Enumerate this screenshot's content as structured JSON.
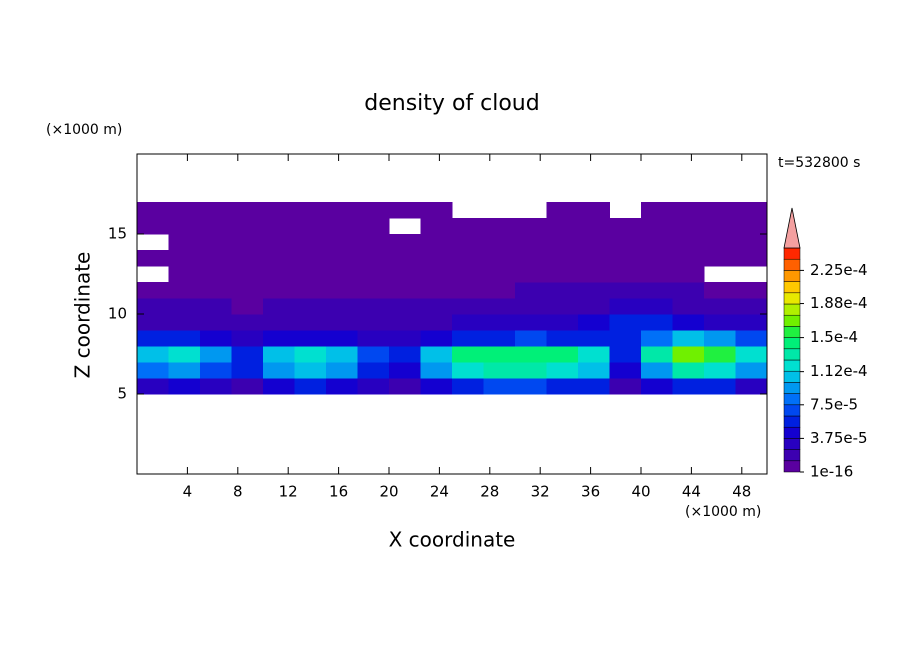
{
  "chart_data": {
    "type": "contour",
    "title": "density of cloud",
    "xlabel": "X coordinate",
    "ylabel": "Z coordinate",
    "x_unit": "(×1000 m)",
    "y_unit": "(×1000 m)",
    "time_label": "t=532800 s",
    "xlim": [
      0,
      50
    ],
    "ylim": [
      0,
      20
    ],
    "xticks": [
      4,
      8,
      12,
      16,
      20,
      24,
      28,
      32,
      36,
      40,
      44,
      48
    ],
    "yticks": [
      5,
      10,
      15
    ],
    "x_edges": [
      0,
      2.5,
      5,
      7.5,
      10,
      12.5,
      15,
      17.5,
      20,
      22.5,
      25,
      27.5,
      30,
      32.5,
      35,
      37.5,
      40,
      42.5,
      45,
      47.5,
      50
    ],
    "z_edges": [
      5,
      6,
      7,
      8,
      9,
      10,
      11,
      12,
      13,
      14,
      15,
      16,
      17
    ],
    "values": [
      [
        3e-05,
        4e-05,
        3e-05,
        2e-05,
        4e-05,
        5e-05,
        4e-05,
        3e-05,
        2e-05,
        4e-05,
        6e-05,
        7e-05,
        7e-05,
        6e-05,
        5e-05,
        2e-05,
        4e-05,
        6e-05,
        5e-05,
        3e-05
      ],
      [
        8e-05,
        9e-05,
        7e-05,
        5e-05,
        9e-05,
        0.0001,
        9e-05,
        6e-05,
        4e-05,
        9e-05,
        0.00012,
        0.00013,
        0.00013,
        0.00012,
        0.0001,
        4e-05,
        9e-05,
        0.00013,
        0.00012,
        9e-05
      ],
      [
        0.00011,
        0.00012,
        9e-05,
        6e-05,
        0.00011,
        0.00012,
        0.00011,
        7e-05,
        5e-05,
        0.00011,
        0.00014,
        0.00015,
        0.00015,
        0.000145,
        0.00012,
        5e-05,
        0.00013,
        0.00017,
        0.00016,
        0.00012
      ],
      [
        6e-05,
        5e-05,
        4e-05,
        3e-05,
        4e-05,
        4e-05,
        4e-05,
        3e-05,
        3e-05,
        4e-05,
        5e-05,
        6e-05,
        7e-05,
        6e-05,
        5e-05,
        6e-05,
        8e-05,
        0.0001,
        9e-05,
        7e-05
      ],
      [
        2e-05,
        2e-05,
        2e-05,
        2e-05,
        2e-05,
        2e-05,
        2e-05,
        2e-05,
        2e-05,
        2e-05,
        3e-05,
        3e-05,
        3e-05,
        3e-05,
        4e-05,
        5e-05,
        5e-05,
        4e-05,
        3e-05,
        3e-05
      ],
      [
        1.5e-05,
        1.4e-05,
        1.3e-05,
        1.2e-05,
        1.3e-05,
        1.4e-05,
        1.5e-05,
        1.5e-05,
        1.4e-05,
        1.5e-05,
        1.6e-05,
        1.8e-05,
        1.8e-05,
        1.7e-05,
        2e-05,
        2.5e-05,
        2.6e-05,
        2.2e-05,
        1.8e-05,
        1.6e-05
      ],
      [
        8e-06,
        7e-06,
        8e-06,
        6e-06,
        8e-06,
        9e-06,
        1e-05,
        9e-06,
        8e-06,
        1e-05,
        1.1e-05,
        1.2e-05,
        1.3e-05,
        1.3e-05,
        1.3e-05,
        1.4e-05,
        1.4e-05,
        1.3e-05,
        1.2e-05,
        1.1e-05
      ],
      [
        null,
        5e-06,
        5e-06,
        4e-06,
        5e-06,
        6e-06,
        6e-06,
        6e-06,
        5e-06,
        6e-06,
        7e-06,
        8e-06,
        8e-06,
        8e-06,
        9e-06,
        9e-06,
        9e-06,
        9e-06,
        null,
        null
      ],
      [
        3e-06,
        3e-06,
        3e-06,
        3e-06,
        4e-06,
        4e-06,
        4e-06,
        4e-06,
        4e-06,
        4e-06,
        5e-06,
        5e-06,
        5e-06,
        5e-06,
        5e-06,
        5e-06,
        6e-06,
        6e-06,
        6e-06,
        5e-06
      ],
      [
        null,
        2e-06,
        2e-06,
        2e-06,
        2e-06,
        2e-06,
        3e-06,
        3e-06,
        3e-06,
        3e-06,
        3e-06,
        3e-06,
        3e-06,
        3e-06,
        3e-06,
        3e-06,
        3e-06,
        3e-06,
        3e-06,
        3e-06
      ],
      [
        1e-06,
        1e-06,
        1e-06,
        1e-06,
        1e-06,
        1e-06,
        1e-06,
        1e-06,
        null,
        1e-06,
        1e-06,
        1e-06,
        1e-06,
        1e-06,
        1e-06,
        1e-06,
        1e-06,
        1e-06,
        1e-06,
        1e-06
      ],
      [
        5e-07,
        5e-07,
        5e-07,
        5e-07,
        5e-07,
        5e-07,
        5e-07,
        5e-07,
        5e-07,
        5e-07,
        null,
        null,
        null,
        5e-07,
        5e-07,
        null,
        5e-07,
        5e-07,
        5e-07,
        5e-07
      ]
    ],
    "clim": [
      1e-16,
      0.00025
    ],
    "level_step": 1.25e-05,
    "colors": [
      "#5a00a0",
      "#3c00b0",
      "#2800c0",
      "#1400d0",
      "#0020e0",
      "#0048f0",
      "#0070f8",
      "#0098f0",
      "#00c0e8",
      "#00e0d0",
      "#00e8a8",
      "#00f078",
      "#20f040",
      "#70f000",
      "#b0f000",
      "#e8e800",
      "#ffc800",
      "#ff9800",
      "#ff6000",
      "#ff2800"
    ],
    "extend_color": "#f4a0a0",
    "cticks": [
      1e-16,
      {
        "value": 3.75e-05,
        "label": "3.75e-5"
      },
      {
        "value": 7.5e-05,
        "label": "7.5e-5"
      },
      {
        "value": 0.000112,
        "label": "1.12e-4"
      },
      {
        "value": 0.00015,
        "label": "1.5e-4"
      },
      {
        "value": 0.000188,
        "label": "1.88e-4"
      },
      {
        "value": 0.000225,
        "label": "2.25e-4"
      }
    ]
  }
}
